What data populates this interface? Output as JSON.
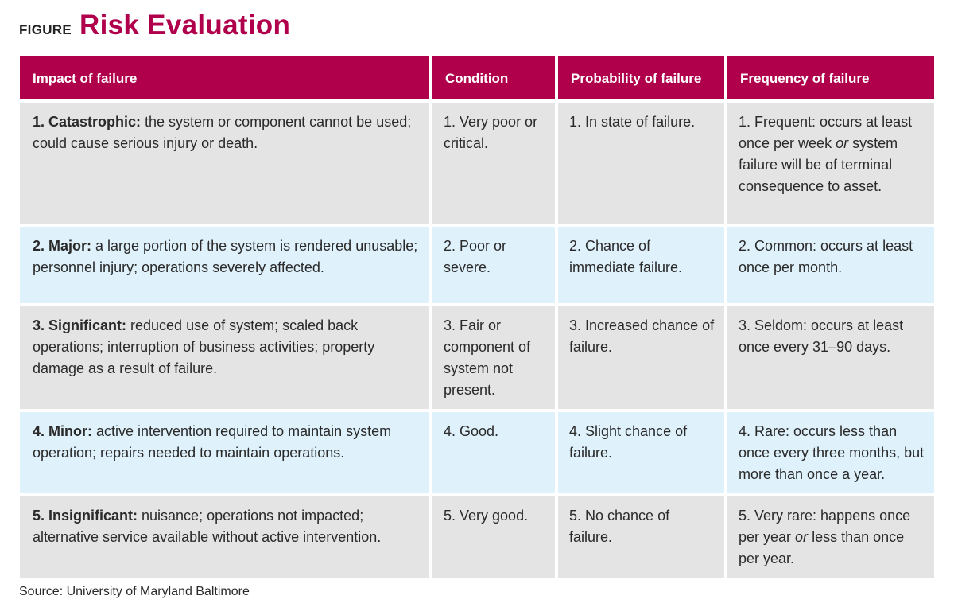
{
  "figure_label": "FIGURE",
  "title": "Risk Evaluation",
  "table": {
    "headers": {
      "impact": "Impact of failure",
      "condition": "Condition",
      "probability": "Probability of failure",
      "frequency": "Frequency of failure"
    },
    "rows": [
      {
        "impact_title": "1.  Catastrophic:",
        "impact_text": " the system or component cannot be used; could cause serious injury or death.",
        "condition": "1.  Very poor or critical.",
        "probability": "1.  In state of failure.",
        "frequency_a": "1.  Frequent: occurs at least once per week ",
        "frequency_em": "or",
        "frequency_b": " system failure will be of terminal consequence to asset."
      },
      {
        "impact_title": "2.  Major:",
        "impact_text": " a large portion of the system is rendered unusable; personnel injury; operations severely affected.",
        "condition": "2.  Poor or severe.",
        "probability": "2.  Chance of immediate failure.",
        "frequency": "2.  Common: occurs at least once per month."
      },
      {
        "impact_title": "3.  Significant:",
        "impact_text": " reduced use of system; scaled back operations; interruption of business activities; property damage as a result of failure.",
        "condition": "3.  Fair or component of system not present.",
        "probability": "3.  Increased chance of failure.",
        "frequency": "3.  Seldom: occurs at least once every 31–90 days."
      },
      {
        "impact_title": "4.  Minor:",
        "impact_text": " active intervention required to maintain system operation; repairs needed to maintain operations.",
        "condition": "4.  Good.",
        "probability": "4.  Slight chance of failure.",
        "frequency": "4.  Rare: occurs less than once every three months, but more than once a year."
      },
      {
        "impact_title": "5.  Insignificant:",
        "impact_text": " nuisance; operations not impacted; alternative service available without active intervention.",
        "condition": "5.  Very good.",
        "probability": "5.  No chance of failure.",
        "frequency_a": "5.  Very rare: happens once per year ",
        "frequency_em": "or",
        "frequency_b": " less than once per year."
      }
    ]
  },
  "source": "Source: University of Maryland Baltimore",
  "colors": {
    "accent": "#b0004b",
    "row_gray": "#e4e4e4",
    "row_blue": "#dff1fb"
  }
}
